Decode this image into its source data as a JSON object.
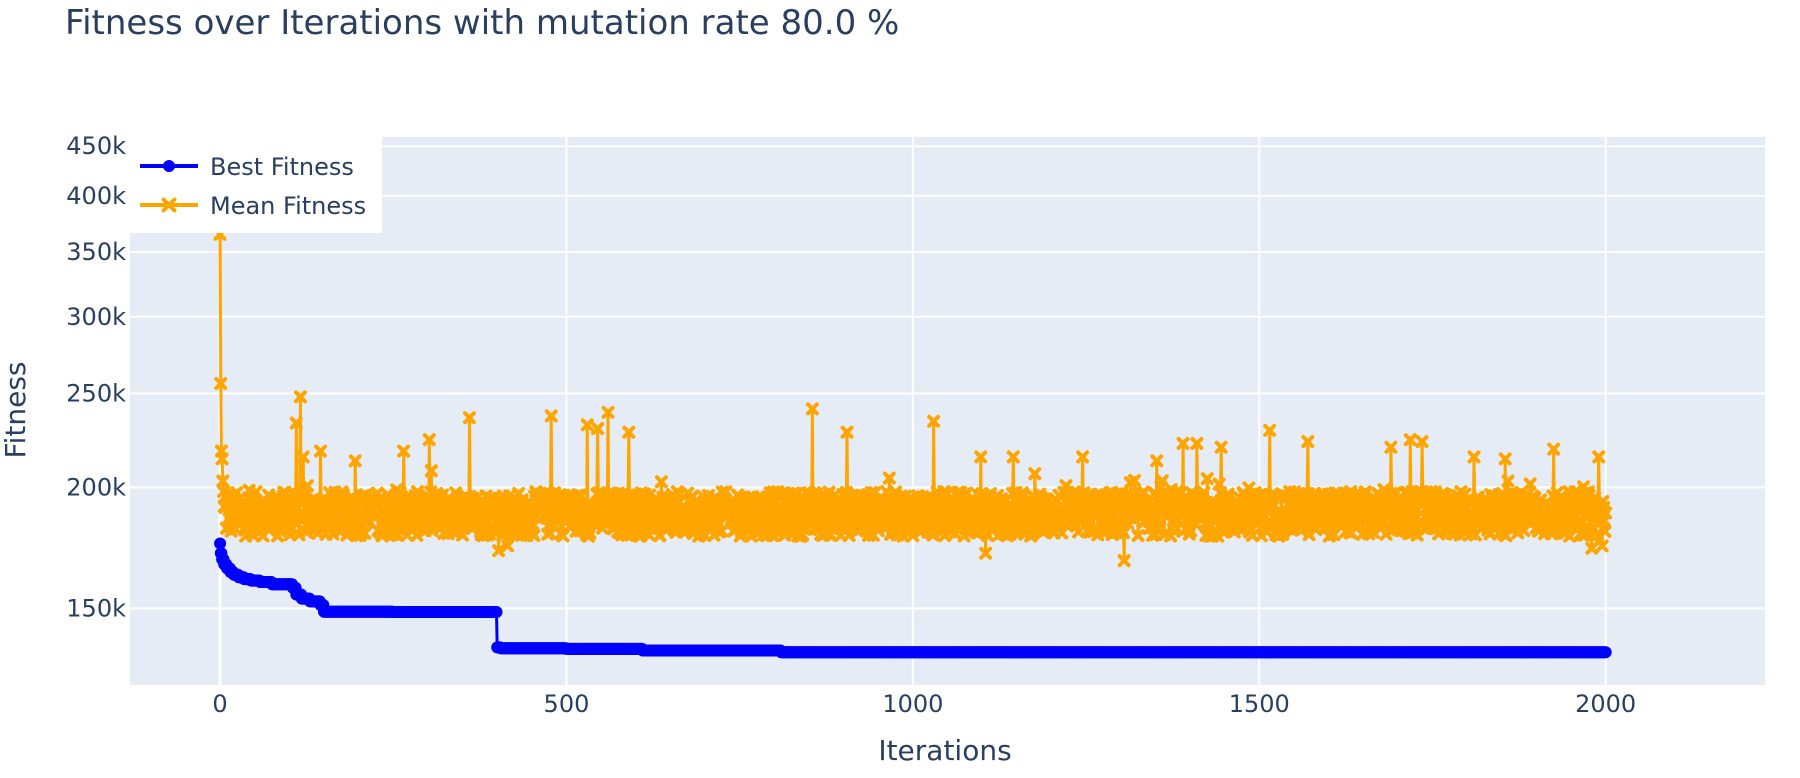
{
  "chart_data": {
    "type": "line",
    "title": "Fitness over Iterations with mutation rate 80.0 %",
    "xlabel": "Iterations",
    "ylabel": "Fitness",
    "y_scale": "log",
    "xlim": [
      -130,
      2230
    ],
    "ylim": [
      125000,
      460000
    ],
    "grid": true,
    "legend_position": "top-left",
    "x_ticks": [
      0,
      500,
      1000,
      1500,
      2000
    ],
    "x_tick_labels": [
      "0",
      "500",
      "1000",
      "1500",
      "2000"
    ],
    "y_ticks": [
      150000,
      200000,
      250000,
      300000,
      350000,
      400000,
      450000
    ],
    "y_tick_labels": [
      "150k",
      "200k",
      "250k",
      "300k",
      "350k",
      "400k",
      "450k"
    ],
    "colors": {
      "plot_bg": "#e5ecf6",
      "grid": "#ffffff",
      "best": "#0000ff",
      "mean": "#ffa500"
    },
    "series": [
      {
        "name": "Best Fitness",
        "marker": "circle",
        "steps": [
          [
            0,
            175000
          ],
          [
            1,
            171000
          ],
          [
            3,
            168500
          ],
          [
            6,
            166500
          ],
          [
            10,
            165000
          ],
          [
            15,
            163500
          ],
          [
            20,
            162500
          ],
          [
            27,
            161500
          ],
          [
            35,
            160800
          ],
          [
            45,
            160200
          ],
          [
            58,
            159700
          ],
          [
            75,
            158800
          ],
          [
            95,
            158800
          ],
          [
            105,
            157500
          ],
          [
            110,
            155000
          ],
          [
            118,
            153500
          ],
          [
            130,
            152500
          ],
          [
            145,
            151200
          ],
          [
            150,
            148800
          ],
          [
            250,
            148700
          ],
          [
            400,
            136700
          ],
          [
            405,
            136400
          ],
          [
            500,
            136200
          ],
          [
            610,
            135700
          ],
          [
            810,
            135100
          ],
          [
            2000,
            135100
          ]
        ]
      },
      {
        "name": "Mean Fitness",
        "marker": "x",
        "base": 188000,
        "start_points": [
          [
            0,
            365000
          ],
          [
            1,
            256000
          ],
          [
            2,
            218000
          ],
          [
            3,
            214000
          ],
          [
            4,
            203000
          ],
          [
            5,
            198000
          ]
        ],
        "spikes": [
          [
            110,
            233000
          ],
          [
            116,
            248000
          ],
          [
            120,
            215000
          ],
          [
            145,
            218000
          ],
          [
            195,
            213000
          ],
          [
            265,
            218000
          ],
          [
            302,
            224000
          ],
          [
            360,
            236000
          ],
          [
            478,
            237000
          ],
          [
            530,
            232000
          ],
          [
            545,
            230000
          ],
          [
            560,
            239000
          ],
          [
            590,
            228000
          ],
          [
            855,
            241000
          ],
          [
            905,
            228000
          ],
          [
            1030,
            234000
          ],
          [
            1098,
            215000
          ],
          [
            1145,
            215000
          ],
          [
            1245,
            215000
          ],
          [
            1352,
            213000
          ],
          [
            1390,
            222000
          ],
          [
            1410,
            222000
          ],
          [
            1445,
            220000
          ],
          [
            1515,
            229000
          ],
          [
            1570,
            223000
          ],
          [
            1690,
            220000
          ],
          [
            1718,
            224000
          ],
          [
            1735,
            223000
          ],
          [
            1810,
            215000
          ],
          [
            1855,
            214000
          ],
          [
            1925,
            219000
          ],
          [
            1990,
            215000
          ]
        ],
        "dips": [
          [
            402,
            172000
          ],
          [
            415,
            174000
          ],
          [
            1105,
            171000
          ],
          [
            1305,
            168000
          ],
          [
            1810,
            167000
          ],
          [
            1980,
            173000
          ],
          [
            1995,
            174000
          ]
        ]
      }
    ]
  }
}
